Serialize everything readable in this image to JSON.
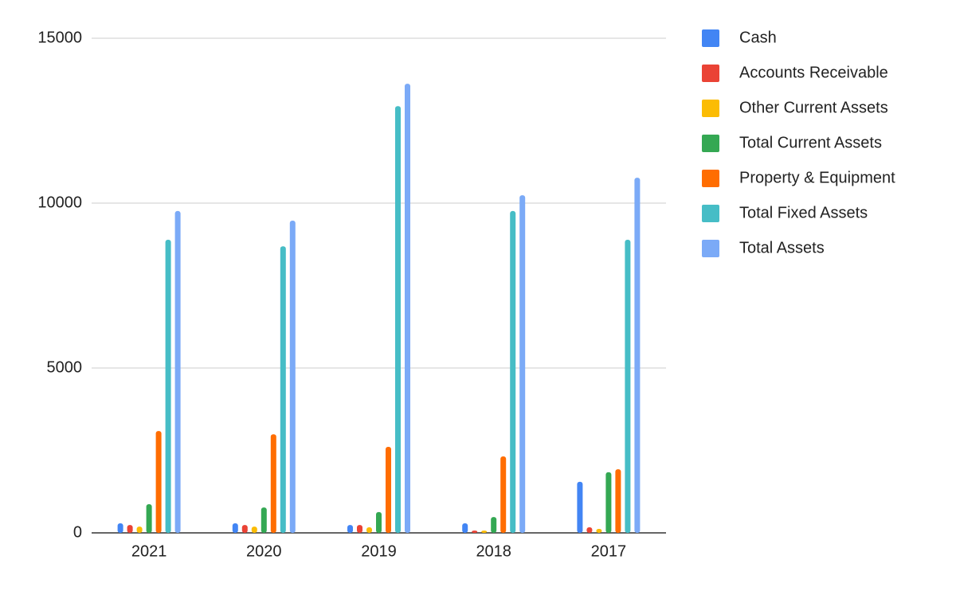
{
  "chart_data": {
    "type": "bar",
    "categories": [
      "2021",
      "2020",
      "2019",
      "2018",
      "2017"
    ],
    "series": [
      {
        "name": "Cash",
        "color": "#4285f4",
        "values": [
          290,
          290,
          240,
          290,
          1550
        ]
      },
      {
        "name": "Accounts Receivable",
        "color": "#ea4335",
        "values": [
          240,
          240,
          240,
          70,
          170
        ]
      },
      {
        "name": "Other Current Assets",
        "color": "#fbbc04",
        "values": [
          190,
          190,
          170,
          70,
          120
        ]
      },
      {
        "name": "Total Current Assets",
        "color": "#34a853",
        "values": [
          870,
          770,
          630,
          480,
          1840
        ]
      },
      {
        "name": "Property & Equipment",
        "color": "#ff6d01",
        "values": [
          3090,
          2990,
          2610,
          2320,
          1930
        ]
      },
      {
        "name": "Total Fixed Assets",
        "color": "#46bdc6",
        "values": [
          8890,
          8690,
          12940,
          9760,
          8890
        ]
      },
      {
        "name": "Total Assets",
        "color": "#7baaf7",
        "values": [
          9760,
          9470,
          13620,
          10240,
          10770
        ]
      }
    ],
    "ylim": [
      0,
      15000
    ],
    "yticks": [
      0,
      5000,
      10000,
      15000
    ],
    "grid": true,
    "legend": "right"
  }
}
